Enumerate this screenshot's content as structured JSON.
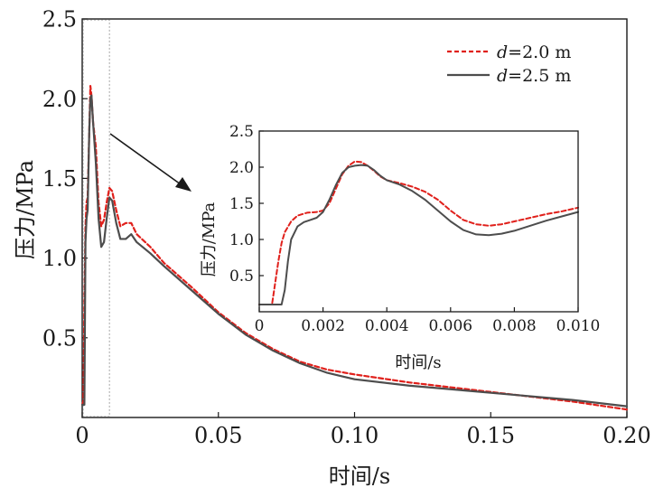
{
  "chart_data": [
    {
      "type": "line",
      "role": "main",
      "xlabel": "时间/s",
      "ylabel": "压力/MPa",
      "xlim": [
        0,
        0.2
      ],
      "ylim": [
        0,
        2.5
      ],
      "x_ticks": [
        0,
        0.05,
        0.1,
        0.15,
        0.2
      ],
      "x_tick_labels": [
        "0",
        "0.05",
        "0.10",
        "0.15",
        "0.20"
      ],
      "y_ticks": [
        0.5,
        1.0,
        1.5,
        2.0,
        2.5
      ],
      "y_tick_labels": [
        "0.5",
        "1.0",
        "1.5",
        "2.0",
        "2.5"
      ],
      "legend": {
        "placement": "top-right",
        "entries": [
          {
            "italic": "d",
            "text": "=2.0 m"
          },
          {
            "italic": "d",
            "text": "=2.5 m"
          }
        ]
      },
      "zoom_region": {
        "x": [
          0,
          0.01
        ],
        "y": [
          0,
          2.5
        ]
      },
      "series": [
        {
          "name": "d=2.0 m",
          "color": "#e0201b",
          "style": "dashed",
          "points": [
            [
              0,
              0.08
            ],
            [
              0.0004,
              0.1
            ],
            [
              0.0008,
              0.7
            ],
            [
              0.0012,
              1.2
            ],
            [
              0.0016,
              1.35
            ],
            [
              0.002,
              1.38
            ],
            [
              0.0026,
              1.8
            ],
            [
              0.003,
              2.08
            ],
            [
              0.0034,
              2.02
            ],
            [
              0.004,
              1.85
            ],
            [
              0.005,
              1.7
            ],
            [
              0.006,
              1.35
            ],
            [
              0.007,
              1.2
            ],
            [
              0.008,
              1.24
            ],
            [
              0.009,
              1.35
            ],
            [
              0.01,
              1.44
            ],
            [
              0.011,
              1.42
            ],
            [
              0.0125,
              1.3
            ],
            [
              0.014,
              1.2
            ],
            [
              0.016,
              1.22
            ],
            [
              0.018,
              1.22
            ],
            [
              0.02,
              1.15
            ],
            [
              0.025,
              1.07
            ],
            [
              0.03,
              0.97
            ],
            [
              0.04,
              0.82
            ],
            [
              0.05,
              0.66
            ],
            [
              0.06,
              0.53
            ],
            [
              0.07,
              0.43
            ],
            [
              0.08,
              0.35
            ],
            [
              0.09,
              0.3
            ],
            [
              0.1,
              0.27
            ],
            [
              0.12,
              0.22
            ],
            [
              0.14,
              0.18
            ],
            [
              0.16,
              0.14
            ],
            [
              0.18,
              0.1
            ],
            [
              0.2,
              0.05
            ]
          ]
        },
        {
          "name": "d=2.5 m",
          "color": "#4d4d4d",
          "style": "solid",
          "points": [
            [
              0,
              0.08
            ],
            [
              0.0008,
              0.08
            ],
            [
              0.001,
              0.6
            ],
            [
              0.0012,
              1.1
            ],
            [
              0.0016,
              1.25
            ],
            [
              0.002,
              1.3
            ],
            [
              0.0026,
              1.8
            ],
            [
              0.003,
              2.0
            ],
            [
              0.0034,
              2.02
            ],
            [
              0.004,
              1.85
            ],
            [
              0.005,
              1.6
            ],
            [
              0.006,
              1.25
            ],
            [
              0.007,
              1.07
            ],
            [
              0.008,
              1.1
            ],
            [
              0.009,
              1.25
            ],
            [
              0.01,
              1.38
            ],
            [
              0.011,
              1.36
            ],
            [
              0.0125,
              1.22
            ],
            [
              0.014,
              1.12
            ],
            [
              0.016,
              1.12
            ],
            [
              0.018,
              1.15
            ],
            [
              0.02,
              1.1
            ],
            [
              0.025,
              1.03
            ],
            [
              0.03,
              0.95
            ],
            [
              0.04,
              0.8
            ],
            [
              0.05,
              0.65
            ],
            [
              0.06,
              0.52
            ],
            [
              0.07,
              0.42
            ],
            [
              0.08,
              0.34
            ],
            [
              0.09,
              0.28
            ],
            [
              0.1,
              0.24
            ],
            [
              0.12,
              0.2
            ],
            [
              0.14,
              0.17
            ],
            [
              0.16,
              0.14
            ],
            [
              0.18,
              0.11
            ],
            [
              0.2,
              0.07
            ]
          ]
        }
      ]
    },
    {
      "type": "line",
      "role": "inset",
      "xlabel": "时间/s",
      "ylabel": "压力/MPa",
      "xlim": [
        0,
        0.01
      ],
      "ylim": [
        0,
        2.5
      ],
      "x_ticks": [
        0,
        0.002,
        0.004,
        0.006,
        0.008,
        0.01
      ],
      "x_tick_labels": [
        "0",
        "0.002",
        "0.004",
        "0.006",
        "0.008",
        "0.010"
      ],
      "y_ticks": [
        0.5,
        1.0,
        1.5,
        2.0,
        2.5
      ],
      "y_tick_labels": [
        "0.5",
        "1.0",
        "1.5",
        "2.0",
        "2.5"
      ],
      "series": [
        {
          "name": "d=2.0 m",
          "color": "#e0201b",
          "style": "dashed",
          "points": [
            [
              0,
              0.1
            ],
            [
              0.0004,
              0.1
            ],
            [
              0.0005,
              0.4
            ],
            [
              0.0006,
              0.7
            ],
            [
              0.0007,
              0.95
            ],
            [
              0.0008,
              1.1
            ],
            [
              0.001,
              1.25
            ],
            [
              0.0012,
              1.33
            ],
            [
              0.0015,
              1.37
            ],
            [
              0.0018,
              1.38
            ],
            [
              0.002,
              1.4
            ],
            [
              0.0022,
              1.5
            ],
            [
              0.0024,
              1.7
            ],
            [
              0.0026,
              1.9
            ],
            [
              0.0028,
              2.02
            ],
            [
              0.003,
              2.08
            ],
            [
              0.0032,
              2.07
            ],
            [
              0.0034,
              2.02
            ],
            [
              0.0036,
              1.95
            ],
            [
              0.0038,
              1.87
            ],
            [
              0.004,
              1.82
            ],
            [
              0.0044,
              1.78
            ],
            [
              0.0048,
              1.73
            ],
            [
              0.0052,
              1.66
            ],
            [
              0.0056,
              1.55
            ],
            [
              0.006,
              1.4
            ],
            [
              0.0064,
              1.27
            ],
            [
              0.0068,
              1.21
            ],
            [
              0.0072,
              1.19
            ],
            [
              0.0076,
              1.21
            ],
            [
              0.008,
              1.25
            ],
            [
              0.0085,
              1.3
            ],
            [
              0.009,
              1.35
            ],
            [
              0.0095,
              1.39
            ],
            [
              0.01,
              1.44
            ]
          ]
        },
        {
          "name": "d=2.5 m",
          "color": "#4d4d4d",
          "style": "solid",
          "points": [
            [
              0,
              0.1
            ],
            [
              0.0007,
              0.1
            ],
            [
              0.0008,
              0.3
            ],
            [
              0.0009,
              0.7
            ],
            [
              0.001,
              1.0
            ],
            [
              0.0012,
              1.18
            ],
            [
              0.0014,
              1.24
            ],
            [
              0.0016,
              1.27
            ],
            [
              0.0018,
              1.3
            ],
            [
              0.002,
              1.38
            ],
            [
              0.0022,
              1.55
            ],
            [
              0.0024,
              1.75
            ],
            [
              0.0026,
              1.92
            ],
            [
              0.0028,
              2.0
            ],
            [
              0.003,
              2.02
            ],
            [
              0.0032,
              2.03
            ],
            [
              0.0034,
              2.02
            ],
            [
              0.0036,
              1.96
            ],
            [
              0.0038,
              1.88
            ],
            [
              0.004,
              1.82
            ],
            [
              0.0044,
              1.76
            ],
            [
              0.0048,
              1.67
            ],
            [
              0.0052,
              1.55
            ],
            [
              0.0056,
              1.4
            ],
            [
              0.006,
              1.25
            ],
            [
              0.0064,
              1.13
            ],
            [
              0.0068,
              1.07
            ],
            [
              0.0072,
              1.06
            ],
            [
              0.0076,
              1.08
            ],
            [
              0.008,
              1.12
            ],
            [
              0.0085,
              1.19
            ],
            [
              0.009,
              1.26
            ],
            [
              0.0095,
              1.32
            ],
            [
              0.01,
              1.38
            ]
          ]
        }
      ]
    }
  ]
}
